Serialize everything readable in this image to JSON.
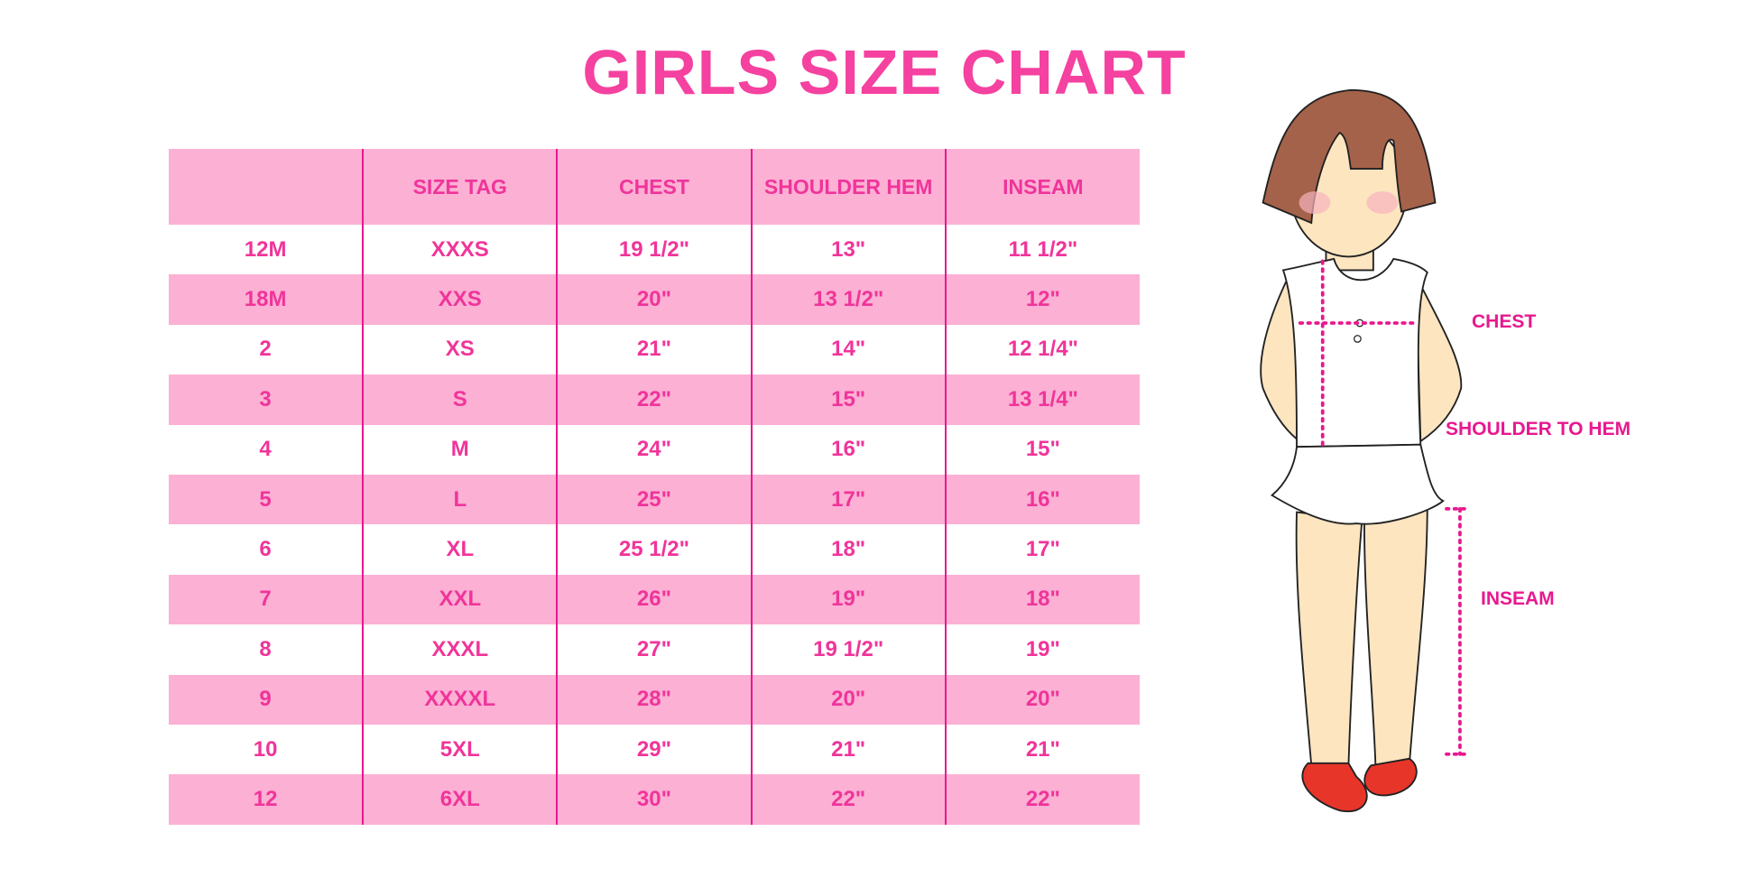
{
  "title": "GIRLS SIZE CHART",
  "colors": {
    "accent": "#f5419f",
    "row_pink": "#fcb0d4",
    "divider": "#e8188f",
    "hair": "#a5624a",
    "skin": "#fde5c0",
    "shoes": "#e8352a"
  },
  "table": {
    "headers": [
      "",
      "SIZE TAG",
      "CHEST",
      "SHOULDER HEM",
      "INSEAM"
    ],
    "rows": [
      [
        "12M",
        "XXXS",
        "19 1/2\"",
        "13\"",
        "11 1/2\""
      ],
      [
        "18M",
        "XXS",
        "20\"",
        "13 1/2\"",
        "12\""
      ],
      [
        "2",
        "XS",
        "21\"",
        "14\"",
        "12 1/4\""
      ],
      [
        "3",
        "S",
        "22\"",
        "15\"",
        "13 1/4\""
      ],
      [
        "4",
        "M",
        "24\"",
        "16\"",
        "15\""
      ],
      [
        "5",
        "L",
        "25\"",
        "17\"",
        "16\""
      ],
      [
        "6",
        "XL",
        "25 1/2\"",
        "18\"",
        "17\""
      ],
      [
        "7",
        "XXL",
        "26\"",
        "19\"",
        "18\""
      ],
      [
        "8",
        "XXXL",
        "27\"",
        "19 1/2\"",
        "19\""
      ],
      [
        "9",
        "XXXXL",
        "28\"",
        "20\"",
        "20\""
      ],
      [
        "10",
        "5XL",
        "29\"",
        "21\"",
        "21\""
      ],
      [
        "12",
        "6XL",
        "30\"",
        "22\"",
        "22\""
      ]
    ]
  },
  "diagram": {
    "chest_label": "CHEST",
    "shoulder_label": "SHOULDER TO HEM",
    "inseam_label": "INSEAM"
  }
}
